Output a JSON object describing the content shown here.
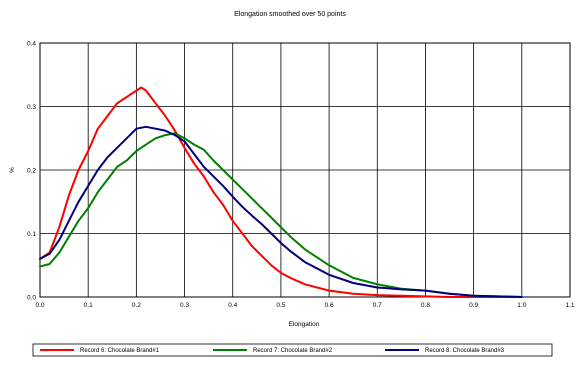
{
  "chart_data": {
    "type": "line",
    "title": "Elongation smoothed over 50 points",
    "xlabel": "Elongation",
    "ylabel": "%",
    "xlim": [
      0.0,
      1.1
    ],
    "ylim": [
      0.0,
      0.4
    ],
    "xticks": [
      "0.0",
      "0.1",
      "0.2",
      "0.3",
      "0.4",
      "0.5",
      "0.6",
      "0.7",
      "0.8",
      "0.9",
      "1.0",
      "1.1"
    ],
    "yticks": [
      "0.0",
      "0.1",
      "0.2",
      "0.3",
      "0.4"
    ],
    "grid": true,
    "legend_position": "bottom",
    "series": [
      {
        "name": "Record 6: Chocolate Brand#1",
        "color": "#ff0000",
        "x": [
          0.0,
          0.02,
          0.04,
          0.06,
          0.08,
          0.1,
          0.12,
          0.14,
          0.16,
          0.18,
          0.2,
          0.21,
          0.22,
          0.24,
          0.26,
          0.28,
          0.3,
          0.32,
          0.34,
          0.36,
          0.38,
          0.4,
          0.42,
          0.44,
          0.46,
          0.48,
          0.5,
          0.52,
          0.55,
          0.6,
          0.65,
          0.7,
          0.75,
          0.8,
          0.85,
          0.9,
          0.95,
          1.0
        ],
        "y": [
          0.06,
          0.07,
          0.11,
          0.16,
          0.2,
          0.23,
          0.265,
          0.285,
          0.305,
          0.315,
          0.325,
          0.33,
          0.325,
          0.305,
          0.285,
          0.262,
          0.235,
          0.21,
          0.19,
          0.165,
          0.145,
          0.12,
          0.1,
          0.08,
          0.065,
          0.05,
          0.038,
          0.03,
          0.02,
          0.01,
          0.005,
          0.003,
          0.002,
          0.001,
          0.0,
          0.0,
          0.0,
          0.0
        ]
      },
      {
        "name": "Record 7: Chocolate Brand#2",
        "color": "#008000",
        "x": [
          0.0,
          0.02,
          0.04,
          0.06,
          0.08,
          0.1,
          0.12,
          0.14,
          0.16,
          0.18,
          0.2,
          0.22,
          0.24,
          0.26,
          0.28,
          0.3,
          0.32,
          0.34,
          0.36,
          0.38,
          0.4,
          0.42,
          0.44,
          0.46,
          0.48,
          0.5,
          0.52,
          0.55,
          0.6,
          0.65,
          0.7,
          0.75,
          0.8,
          0.85,
          0.9,
          0.95,
          1.0
        ],
        "y": [
          0.048,
          0.052,
          0.07,
          0.095,
          0.12,
          0.14,
          0.165,
          0.185,
          0.205,
          0.215,
          0.23,
          0.24,
          0.25,
          0.255,
          0.258,
          0.25,
          0.24,
          0.232,
          0.215,
          0.2,
          0.185,
          0.17,
          0.155,
          0.14,
          0.125,
          0.11,
          0.095,
          0.075,
          0.05,
          0.03,
          0.02,
          0.013,
          0.01,
          0.005,
          0.002,
          0.001,
          0.0
        ]
      },
      {
        "name": "Record 8: Chocolate Brand#3",
        "color": "#000080",
        "x": [
          0.0,
          0.02,
          0.04,
          0.06,
          0.08,
          0.1,
          0.12,
          0.14,
          0.16,
          0.18,
          0.2,
          0.22,
          0.24,
          0.26,
          0.28,
          0.3,
          0.32,
          0.34,
          0.36,
          0.38,
          0.4,
          0.42,
          0.44,
          0.46,
          0.48,
          0.5,
          0.52,
          0.55,
          0.6,
          0.65,
          0.7,
          0.75,
          0.8,
          0.85,
          0.9,
          0.95,
          1.0
        ],
        "y": [
          0.06,
          0.068,
          0.09,
          0.12,
          0.15,
          0.175,
          0.2,
          0.22,
          0.235,
          0.25,
          0.265,
          0.268,
          0.265,
          0.262,
          0.255,
          0.245,
          0.225,
          0.205,
          0.19,
          0.175,
          0.158,
          0.142,
          0.128,
          0.115,
          0.1,
          0.085,
          0.072,
          0.055,
          0.035,
          0.022,
          0.015,
          0.012,
          0.01,
          0.005,
          0.002,
          0.001,
          0.0
        ]
      }
    ]
  }
}
